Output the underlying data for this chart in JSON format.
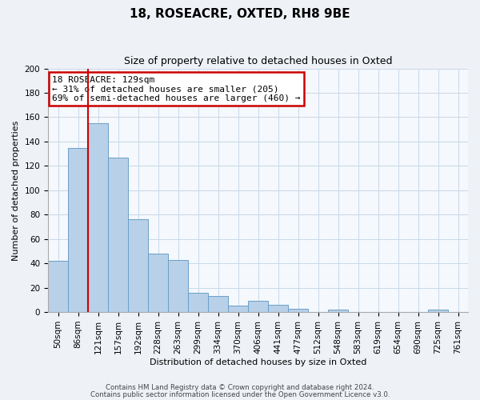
{
  "title": "18, ROSEACRE, OXTED, RH8 9BE",
  "subtitle": "Size of property relative to detached houses in Oxted",
  "xlabel": "Distribution of detached houses by size in Oxted",
  "ylabel": "Number of detached properties",
  "footer_line1": "Contains HM Land Registry data © Crown copyright and database right 2024.",
  "footer_line2": "Contains public sector information licensed under the Open Government Licence v3.0.",
  "bin_labels": [
    "50sqm",
    "86sqm",
    "121sqm",
    "157sqm",
    "192sqm",
    "228sqm",
    "263sqm",
    "299sqm",
    "334sqm",
    "370sqm",
    "406sqm",
    "441sqm",
    "477sqm",
    "512sqm",
    "548sqm",
    "583sqm",
    "619sqm",
    "654sqm",
    "690sqm",
    "725sqm",
    "761sqm"
  ],
  "bar_heights": [
    42,
    135,
    155,
    127,
    76,
    48,
    43,
    16,
    13,
    5,
    9,
    6,
    3,
    0,
    2,
    0,
    0,
    0,
    0,
    2,
    0
  ],
  "bar_color": "#b8d0e8",
  "bar_edge_color": "#6a9fc8",
  "marker_index": 2,
  "marker_color": "#cc0000",
  "annotation_line1": "18 ROSEACRE: 129sqm",
  "annotation_line2": "← 31% of detached houses are smaller (205)",
  "annotation_line3": "69% of semi-detached houses are larger (460) →",
  "annotation_box_edge": "#cc0000",
  "ylim": [
    0,
    200
  ],
  "yticks": [
    0,
    20,
    40,
    60,
    80,
    100,
    120,
    140,
    160,
    180,
    200
  ],
  "background_color": "#eef2f7",
  "plot_background_color": "#f5f8fc",
  "grid_color": "#c8d8e8",
  "title_fontsize": 11,
  "subtitle_fontsize": 9,
  "axis_label_fontsize": 8,
  "tick_fontsize": 7.5
}
